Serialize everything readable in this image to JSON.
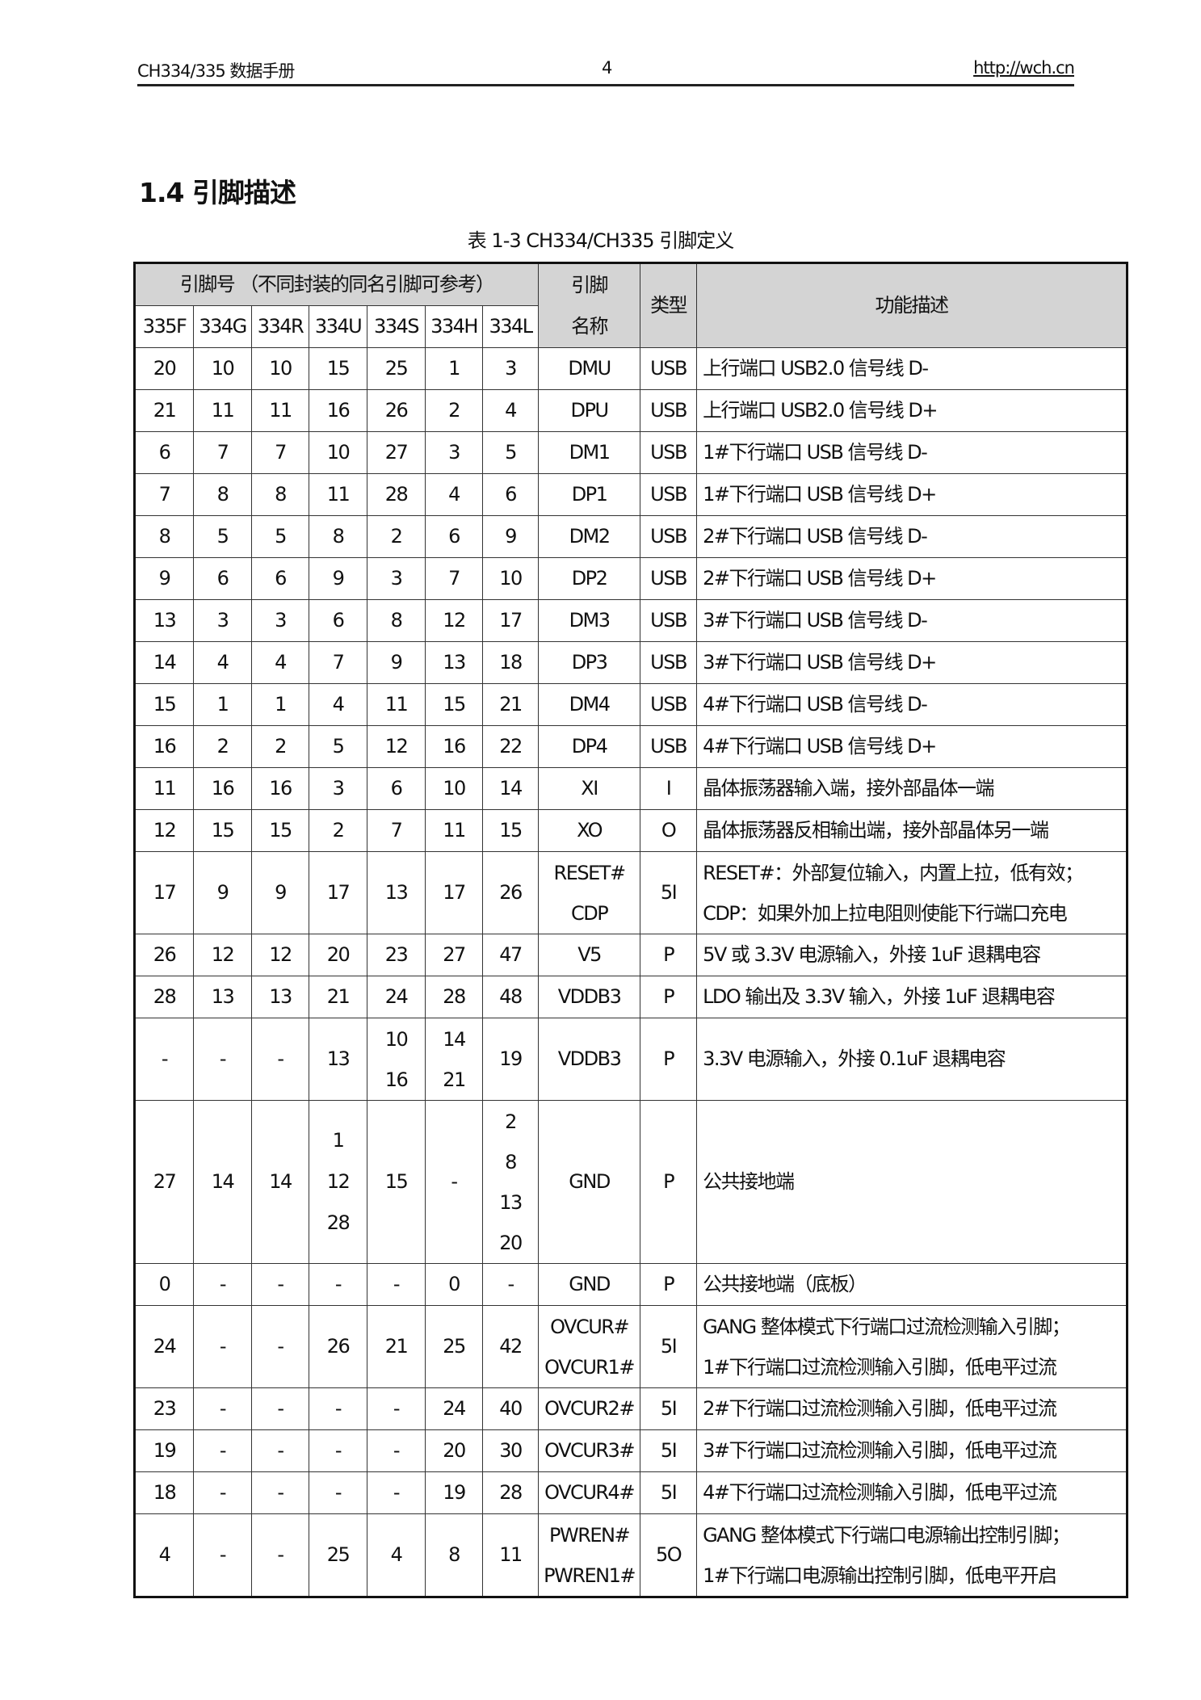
{
  "header": {
    "left": "CH334/335 数据手册",
    "page": "4",
    "right": "http://wch.cn"
  },
  "section_title": "1.4 引脚描述",
  "table": {
    "caption": "表 1-3 CH334/CH335 引脚定义",
    "group_header": "引脚号 （不同封装的同名引脚可参考）",
    "name_header": "引脚\n名称",
    "type_header": "类型",
    "desc_header": "功能描述",
    "packages": [
      "335F",
      "334G",
      "334R",
      "334U",
      "334S",
      "334H",
      "334L"
    ],
    "rows": [
      {
        "pins": [
          "20",
          "10",
          "10",
          "15",
          "25",
          "1",
          "3"
        ],
        "name": "DMU",
        "type": "USB",
        "desc": "上行端口 USB2.0 信号线 D-"
      },
      {
        "pins": [
          "21",
          "11",
          "11",
          "16",
          "26",
          "2",
          "4"
        ],
        "name": "DPU",
        "type": "USB",
        "desc": "上行端口 USB2.0 信号线 D+"
      },
      {
        "pins": [
          "6",
          "7",
          "7",
          "10",
          "27",
          "3",
          "5"
        ],
        "name": "DM1",
        "type": "USB",
        "desc": "1#下行端口 USB 信号线 D-"
      },
      {
        "pins": [
          "7",
          "8",
          "8",
          "11",
          "28",
          "4",
          "6"
        ],
        "name": "DP1",
        "type": "USB",
        "desc": "1#下行端口 USB 信号线 D+"
      },
      {
        "pins": [
          "8",
          "5",
          "5",
          "8",
          "2",
          "6",
          "9"
        ],
        "name": "DM2",
        "type": "USB",
        "desc": "2#下行端口 USB 信号线 D-"
      },
      {
        "pins": [
          "9",
          "6",
          "6",
          "9",
          "3",
          "7",
          "10"
        ],
        "name": "DP2",
        "type": "USB",
        "desc": "2#下行端口 USB 信号线 D+"
      },
      {
        "pins": [
          "13",
          "3",
          "3",
          "6",
          "8",
          "12",
          "17"
        ],
        "name": "DM3",
        "type": "USB",
        "desc": "3#下行端口 USB 信号线 D-"
      },
      {
        "pins": [
          "14",
          "4",
          "4",
          "7",
          "9",
          "13",
          "18"
        ],
        "name": "DP3",
        "type": "USB",
        "desc": "3#下行端口 USB 信号线 D+"
      },
      {
        "pins": [
          "15",
          "1",
          "1",
          "4",
          "11",
          "15",
          "21"
        ],
        "name": "DM4",
        "type": "USB",
        "desc": "4#下行端口 USB 信号线 D-"
      },
      {
        "pins": [
          "16",
          "2",
          "2",
          "5",
          "12",
          "16",
          "22"
        ],
        "name": "DP4",
        "type": "USB",
        "desc": "4#下行端口 USB 信号线 D+"
      },
      {
        "pins": [
          "11",
          "16",
          "16",
          "3",
          "6",
          "10",
          "14"
        ],
        "name": "XI",
        "type": "I",
        "desc": "晶体振荡器输入端，接外部晶体一端"
      },
      {
        "pins": [
          "12",
          "15",
          "15",
          "2",
          "7",
          "11",
          "15"
        ],
        "name": "XO",
        "type": "O",
        "desc": "晶体振荡器反相输出端，接外部晶体另一端"
      },
      {
        "pins": [
          "17",
          "9",
          "9",
          "17",
          "13",
          "17",
          "26"
        ],
        "name": "RESET#\nCDP",
        "type": "5I",
        "desc": "RESET#：外部复位输入，内置上拉，低有效；\nCDP：如果外加上拉电阻则使能下行端口充电"
      },
      {
        "pins": [
          "26",
          "12",
          "12",
          "20",
          "23",
          "27",
          "47"
        ],
        "name": "V5",
        "type": "P",
        "desc": "5V 或 3.3V 电源输入，外接 1uF 退耦电容"
      },
      {
        "pins": [
          "28",
          "13",
          "13",
          "21",
          "24",
          "28",
          "48"
        ],
        "name": "VDDB3",
        "type": "P",
        "desc": "LDO 输出及 3.3V 输入，外接 1uF 退耦电容"
      },
      {
        "pins": [
          "-",
          "-",
          "-",
          "13",
          "10\n16",
          "14\n21",
          "19"
        ],
        "name": "VDDB3",
        "type": "P",
        "desc": "3.3V 电源输入，外接 0.1uF 退耦电容"
      },
      {
        "pins": [
          "27",
          "14",
          "14",
          "1\n12\n28",
          "15",
          "-",
          "2\n8\n13\n20"
        ],
        "name": "GND",
        "type": "P",
        "desc": "公共接地端"
      },
      {
        "pins": [
          "0",
          "-",
          "-",
          "-",
          "-",
          "0",
          "-"
        ],
        "name": "GND",
        "type": "P",
        "desc": "公共接地端（底板）"
      },
      {
        "pins": [
          "24",
          "-",
          "-",
          "26",
          "21",
          "25",
          "42"
        ],
        "name": "OVCUR#\nOVCUR1#",
        "type": "5I",
        "desc": "GANG 整体模式下行端口过流检测输入引脚；\n1#下行端口过流检测输入引脚，低电平过流"
      },
      {
        "pins": [
          "23",
          "-",
          "-",
          "-",
          "-",
          "24",
          "40"
        ],
        "name": "OVCUR2#",
        "type": "5I",
        "desc": "2#下行端口过流检测输入引脚，低电平过流"
      },
      {
        "pins": [
          "19",
          "-",
          "-",
          "-",
          "-",
          "20",
          "30"
        ],
        "name": "OVCUR3#",
        "type": "5I",
        "desc": "3#下行端口过流检测输入引脚，低电平过流"
      },
      {
        "pins": [
          "18",
          "-",
          "-",
          "-",
          "-",
          "19",
          "28"
        ],
        "name": "OVCUR4#",
        "type": "5I",
        "desc": "4#下行端口过流检测输入引脚，低电平过流"
      },
      {
        "pins": [
          "4",
          "-",
          "-",
          "25",
          "4",
          "8",
          "11"
        ],
        "name": "PWREN#\nPWREN1#",
        "type": "5O",
        "desc": "GANG 整体模式下行端口电源输出控制引脚；\n1#下行端口电源输出控制引脚，低电平开启"
      }
    ]
  }
}
